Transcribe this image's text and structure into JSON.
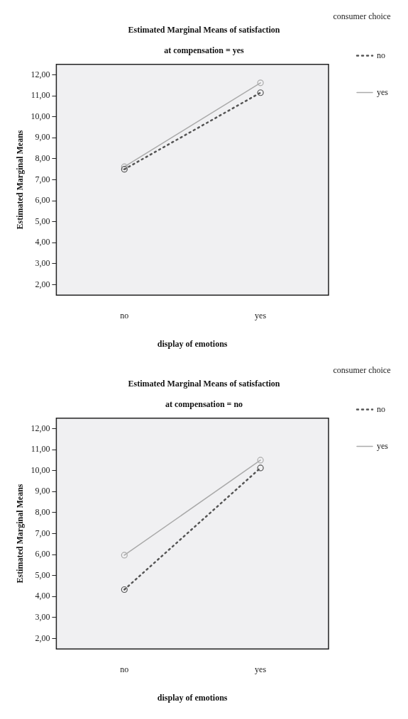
{
  "chart_data": [
    {
      "type": "line",
      "title": "Estimated Marginal Means of satisfaction",
      "subtitle": "at compensation = yes",
      "xlabel": "display of emotions",
      "ylabel": "Estimated Marginal Means",
      "legend_title": "consumer choice",
      "categories": [
        "no",
        "yes"
      ],
      "series": [
        {
          "name": "no",
          "color": "#555555",
          "values": [
            7.5,
            11.15
          ],
          "line_style": "dotted"
        },
        {
          "name": "yes",
          "color": "#aaaaaa",
          "values": [
            7.62,
            11.62
          ],
          "line_style": "solid"
        }
      ],
      "ylim": [
        1.5,
        12.5
      ],
      "yticks": [
        {
          "value": 2,
          "label": "2,00"
        },
        {
          "value": 3,
          "label": "3,00"
        },
        {
          "value": 4,
          "label": "4,00"
        },
        {
          "value": 5,
          "label": "5,00"
        },
        {
          "value": 6,
          "label": "6,00"
        },
        {
          "value": 7,
          "label": "7,00"
        },
        {
          "value": 8,
          "label": "8,00"
        },
        {
          "value": 9,
          "label": "9,00"
        },
        {
          "value": 10,
          "label": "10,00"
        },
        {
          "value": 11,
          "label": "11,00"
        },
        {
          "value": 12,
          "label": "12,00"
        }
      ],
      "grid": false,
      "legend": "right",
      "marker": "circle"
    },
    {
      "type": "line",
      "title": "Estimated Marginal Means of satisfaction",
      "subtitle": "at compensation = no",
      "xlabel": "display of emotions",
      "ylabel": "Estimated Marginal Means",
      "legend_title": "consumer choice",
      "categories": [
        "no",
        "yes"
      ],
      "series": [
        {
          "name": "no",
          "color": "#555555",
          "values": [
            4.33,
            10.13
          ],
          "line_style": "dotted"
        },
        {
          "name": "yes",
          "color": "#aaaaaa",
          "values": [
            5.97,
            10.5
          ],
          "line_style": "solid"
        }
      ],
      "ylim": [
        1.5,
        12.5
      ],
      "yticks": [
        {
          "value": 2,
          "label": "2,00"
        },
        {
          "value": 3,
          "label": "3,00"
        },
        {
          "value": 4,
          "label": "4,00"
        },
        {
          "value": 5,
          "label": "5,00"
        },
        {
          "value": 6,
          "label": "6,00"
        },
        {
          "value": 7,
          "label": "7,00"
        },
        {
          "value": 8,
          "label": "8,00"
        },
        {
          "value": 9,
          "label": "9,00"
        },
        {
          "value": 10,
          "label": "10,00"
        },
        {
          "value": 11,
          "label": "11,00"
        },
        {
          "value": 12,
          "label": "12,00"
        }
      ],
      "grid": false,
      "legend": "right",
      "marker": "circle"
    }
  ]
}
